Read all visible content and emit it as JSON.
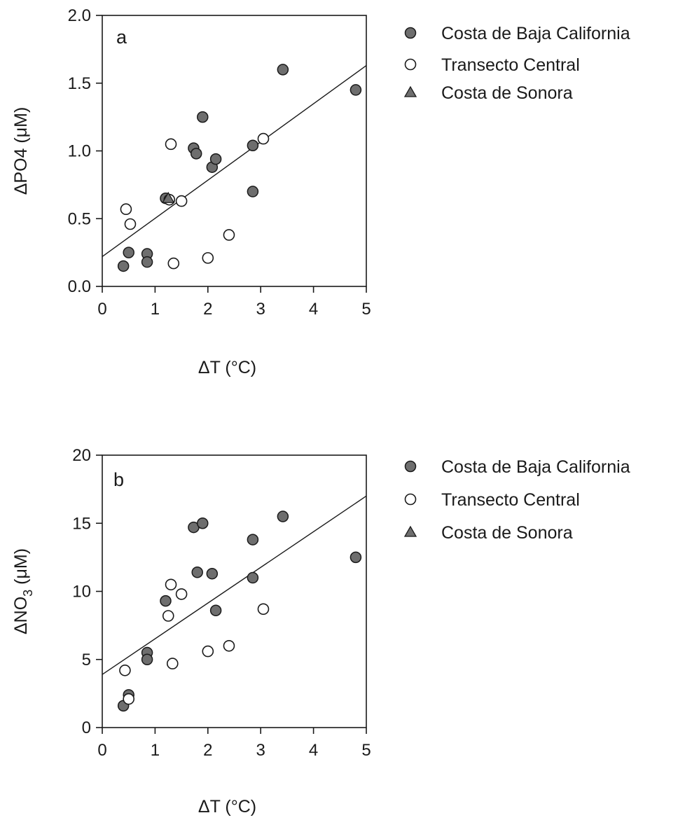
{
  "chart_data": [
    {
      "type": "scatter",
      "panel_label": "a",
      "xlabel": "ΔT  (°C)",
      "ylabel": "ΔPO4  (μM)",
      "xlim": [
        0,
        5
      ],
      "ylim": [
        0,
        2.0
      ],
      "x_ticks": [
        "0",
        "1",
        "2",
        "3",
        "4",
        "5"
      ],
      "y_ticks": [
        "0.0",
        "0.5",
        "1.0",
        "1.5",
        "2.0"
      ],
      "legend_position": "right",
      "series": [
        {
          "name": "Costa de Baja California",
          "marker": "filled-circle",
          "color": "#6e6e6e",
          "points": [
            {
              "x": 0.4,
              "y": 0.15
            },
            {
              "x": 0.5,
              "y": 0.25
            },
            {
              "x": 0.85,
              "y": 0.24
            },
            {
              "x": 0.85,
              "y": 0.18
            },
            {
              "x": 1.2,
              "y": 0.65
            },
            {
              "x": 1.73,
              "y": 1.02
            },
            {
              "x": 1.78,
              "y": 0.98
            },
            {
              "x": 1.9,
              "y": 1.25
            },
            {
              "x": 2.08,
              "y": 0.88
            },
            {
              "x": 2.15,
              "y": 0.94
            },
            {
              "x": 2.85,
              "y": 1.04
            },
            {
              "x": 2.85,
              "y": 0.7
            },
            {
              "x": 3.42,
              "y": 1.6
            },
            {
              "x": 4.8,
              "y": 1.45
            }
          ]
        },
        {
          "name": "Transecto Central",
          "marker": "open-circle",
          "color": "#1a1a1a",
          "points": [
            {
              "x": 0.45,
              "y": 0.57
            },
            {
              "x": 0.53,
              "y": 0.46
            },
            {
              "x": 1.27,
              "y": 0.64
            },
            {
              "x": 1.3,
              "y": 1.05
            },
            {
              "x": 1.35,
              "y": 0.17
            },
            {
              "x": 1.5,
              "y": 0.63
            },
            {
              "x": 2.0,
              "y": 0.21
            },
            {
              "x": 2.4,
              "y": 0.38
            },
            {
              "x": 3.05,
              "y": 1.09
            }
          ]
        },
        {
          "name": "Costa de Sonora",
          "marker": "triangle",
          "color": "#6e6e6e",
          "points": [
            {
              "x": 1.25,
              "y": 0.65
            }
          ]
        }
      ],
      "fit_line": {
        "x": [
          0,
          5
        ],
        "y": [
          0.22,
          1.63
        ]
      }
    },
    {
      "type": "scatter",
      "panel_label": "b",
      "xlabel": "ΔT (°C)",
      "ylabel": "ΔNO",
      "ylabel_subscript": "3",
      "ylabel_unit": "  (μM)",
      "xlim": [
        0,
        5
      ],
      "ylim": [
        0,
        20
      ],
      "x_ticks": [
        "0",
        "1",
        "2",
        "3",
        "4",
        "5"
      ],
      "y_ticks": [
        "0",
        "5",
        "10",
        "15",
        "20"
      ],
      "legend_position": "right",
      "series": [
        {
          "name": "Costa de Baja California",
          "marker": "filled-circle",
          "color": "#6e6e6e",
          "points": [
            {
              "x": 0.4,
              "y": 1.6
            },
            {
              "x": 0.5,
              "y": 2.4
            },
            {
              "x": 0.85,
              "y": 5.5
            },
            {
              "x": 0.85,
              "y": 5.0
            },
            {
              "x": 1.2,
              "y": 9.3
            },
            {
              "x": 1.73,
              "y": 14.7
            },
            {
              "x": 1.8,
              "y": 11.4
            },
            {
              "x": 1.9,
              "y": 15.0
            },
            {
              "x": 2.08,
              "y": 11.3
            },
            {
              "x": 2.15,
              "y": 8.6
            },
            {
              "x": 2.85,
              "y": 13.8
            },
            {
              "x": 2.85,
              "y": 11.0
            },
            {
              "x": 3.42,
              "y": 15.5
            },
            {
              "x": 4.8,
              "y": 12.5
            }
          ]
        },
        {
          "name": "Transecto Central",
          "marker": "open-circle",
          "color": "#1a1a1a",
          "points": [
            {
              "x": 0.43,
              "y": 4.2
            },
            {
              "x": 0.5,
              "y": 2.1
            },
            {
              "x": 1.25,
              "y": 8.2
            },
            {
              "x": 1.3,
              "y": 10.5
            },
            {
              "x": 1.33,
              "y": 4.7
            },
            {
              "x": 1.5,
              "y": 9.8
            },
            {
              "x": 2.0,
              "y": 5.6
            },
            {
              "x": 2.4,
              "y": 6.0
            },
            {
              "x": 3.05,
              "y": 8.7
            }
          ]
        },
        {
          "name": "Costa de Sonora",
          "marker": "triangle",
          "color": "#6e6e6e",
          "points": []
        }
      ],
      "fit_line": {
        "x": [
          0,
          5
        ],
        "y": [
          3.9,
          17.0
        ]
      }
    }
  ]
}
